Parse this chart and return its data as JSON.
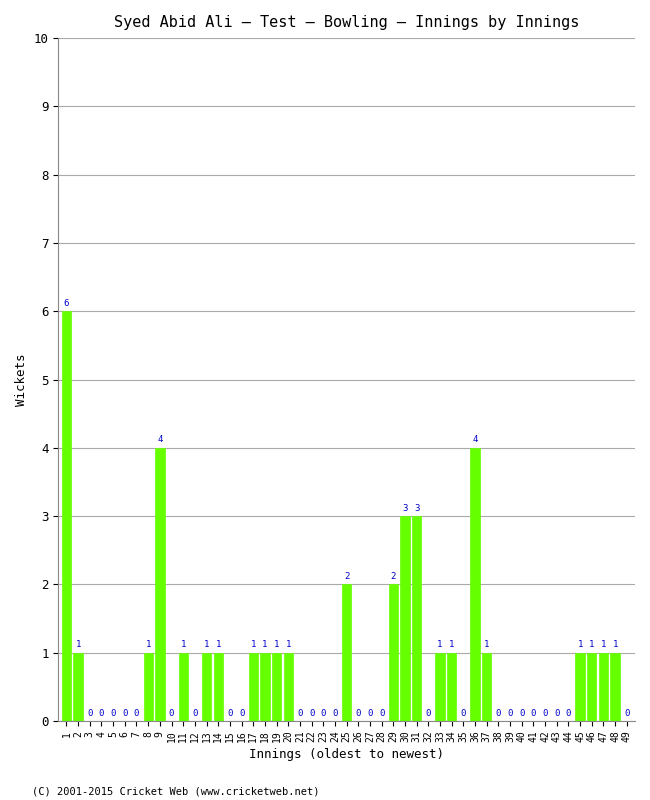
{
  "title": "Syed Abid Ali – Test – Bowling – Innings by Innings",
  "xlabel": "Innings (oldest to newest)",
  "ylabel": "Wickets",
  "bar_color": "#66ff00",
  "label_color": "#0000cc",
  "background_color": "#ffffff",
  "grid_color": "#aaaaaa",
  "ylim": [
    0,
    10
  ],
  "innings_labels": [
    "1",
    "2",
    "3",
    "4",
    "5",
    "6",
    "7",
    "8",
    "9",
    "10",
    "11",
    "12",
    "13",
    "14",
    "15",
    "16",
    "17",
    "18",
    "19",
    "20",
    "21",
    "22",
    "23",
    "24",
    "25",
    "26",
    "27",
    "28",
    "29",
    "30",
    "31",
    "32",
    "33",
    "34",
    "35",
    "36",
    "37",
    "38",
    "39",
    "40",
    "41",
    "42",
    "43",
    "44",
    "45",
    "46",
    "47",
    "48",
    "49"
  ],
  "wickets": [
    6,
    1,
    0,
    0,
    0,
    0,
    0,
    1,
    4,
    0,
    1,
    0,
    1,
    1,
    0,
    0,
    1,
    1,
    1,
    1,
    0,
    0,
    0,
    0,
    2,
    0,
    0,
    0,
    2,
    3,
    3,
    0,
    1,
    1,
    0,
    4,
    1,
    0,
    0,
    0,
    0,
    0,
    0,
    0,
    1,
    1,
    1,
    1,
    0
  ],
  "footer": "(C) 2001-2015 Cricket Web (www.cricketweb.net)"
}
